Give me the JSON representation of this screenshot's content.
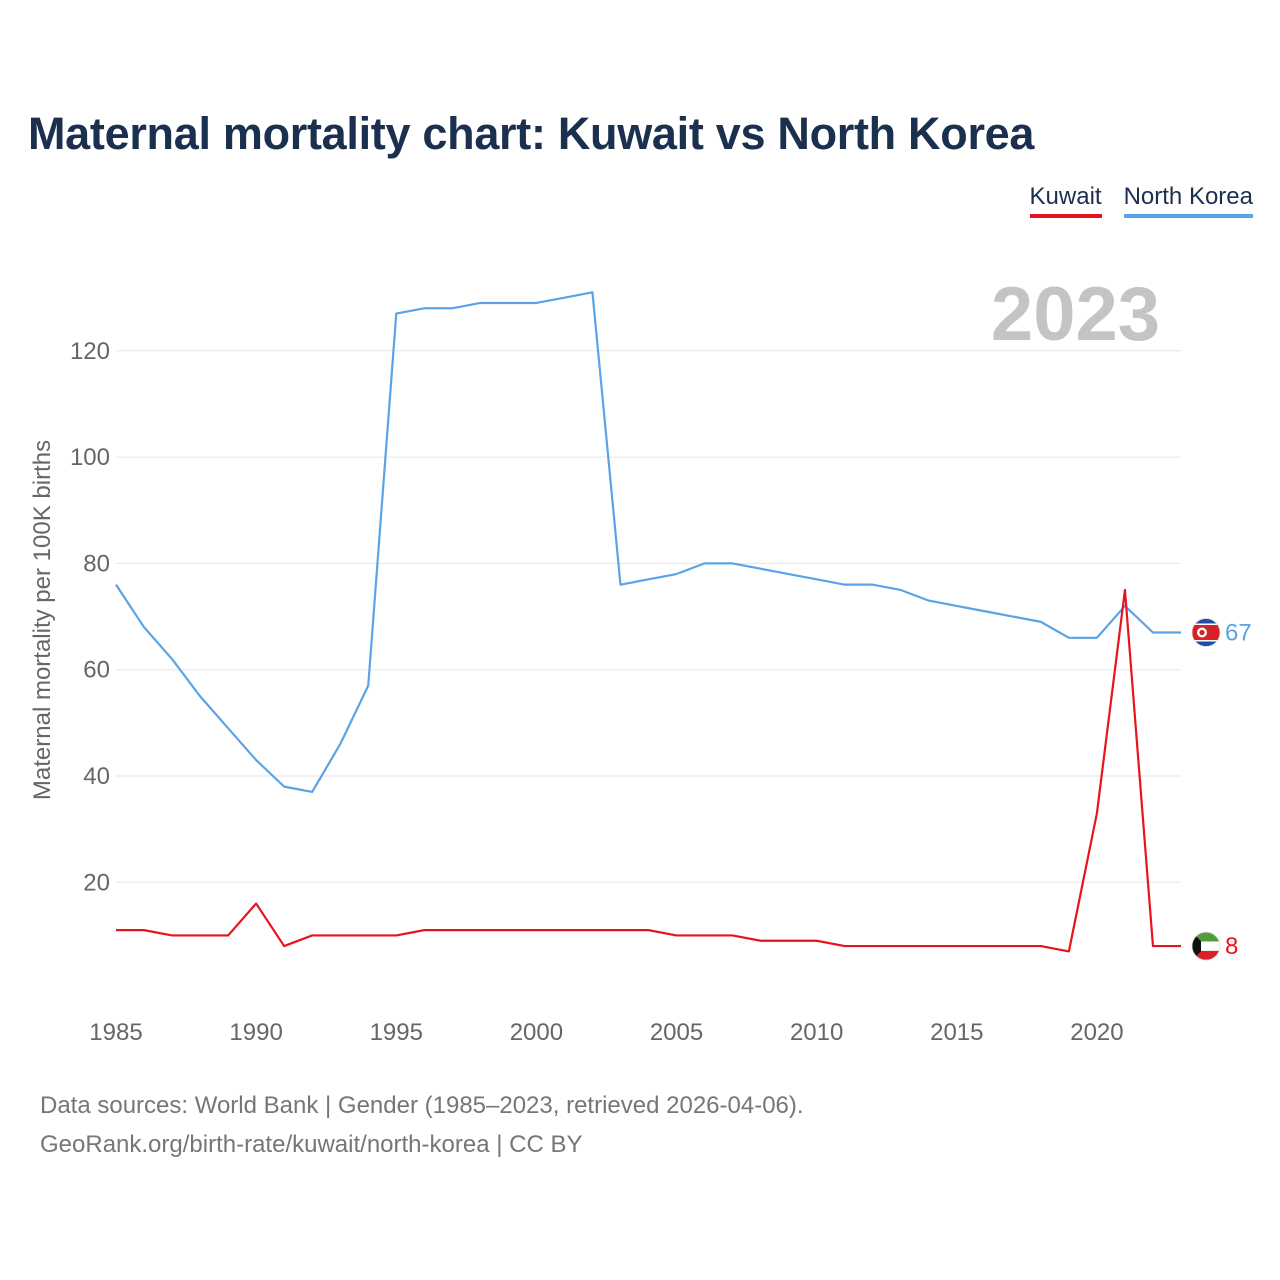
{
  "title": "Maternal mortality chart: Kuwait vs North Korea",
  "legend": {
    "kuwait": "Kuwait",
    "north_korea": "North Korea"
  },
  "year_label": "2023",
  "footer": {
    "line1": "Data sources: World Bank | Gender (1985–2023, retrieved 2026-04-06).",
    "line2": "GeoRank.org/birth-rate/kuwait/north-korea | CC BY"
  },
  "colors": {
    "kuwait": "#e8141b",
    "north_korea": "#5aa3e6",
    "title": "#1b2f4f"
  },
  "chart_data": {
    "type": "line",
    "title": "Maternal mortality chart: Kuwait vs North Korea",
    "xlabel": "",
    "ylabel": "Maternal mortality per 100K births",
    "xlim": [
      1985,
      2023
    ],
    "ylim": [
      0,
      130
    ],
    "xticks": [
      1985,
      1990,
      1995,
      2000,
      2005,
      2010,
      2015,
      2020
    ],
    "yticks": [
      20,
      40,
      60,
      80,
      100,
      120
    ],
    "x": [
      1985,
      1986,
      1987,
      1988,
      1989,
      1990,
      1991,
      1992,
      1993,
      1994,
      1995,
      1996,
      1997,
      1998,
      1999,
      2000,
      2001,
      2002,
      2003,
      2004,
      2005,
      2006,
      2007,
      2008,
      2009,
      2010,
      2011,
      2012,
      2013,
      2014,
      2015,
      2016,
      2017,
      2018,
      2019,
      2020,
      2021,
      2022,
      2023
    ],
    "series": [
      {
        "name": "North Korea",
        "color": "#5aa3e6",
        "end_label": "67",
        "icon": "north-korea-flag-icon",
        "values": [
          76,
          68,
          62,
          55,
          49,
          43,
          38,
          37,
          46,
          57,
          127,
          128,
          128,
          129,
          129,
          129,
          130,
          131,
          76,
          77,
          78,
          80,
          80,
          79,
          78,
          77,
          76,
          76,
          75,
          73,
          72,
          71,
          70,
          69,
          66,
          66,
          72,
          67,
          67
        ]
      },
      {
        "name": "Kuwait",
        "color": "#e8141b",
        "end_label": "8",
        "icon": "kuwait-flag-icon",
        "values": [
          11,
          11,
          10,
          10,
          10,
          16,
          8,
          10,
          10,
          10,
          10,
          11,
          11,
          11,
          11,
          11,
          11,
          11,
          11,
          11,
          10,
          10,
          10,
          9,
          9,
          9,
          8,
          8,
          8,
          8,
          8,
          8,
          8,
          8,
          7,
          33,
          75,
          8,
          8
        ]
      }
    ]
  }
}
